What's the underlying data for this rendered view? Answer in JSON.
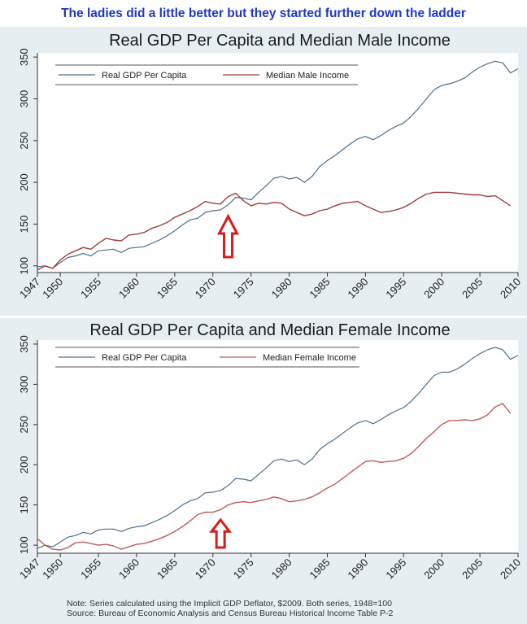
{
  "headline": "The ladies did a little better but they started further down the ladder",
  "note": {
    "line1": "Note: Series calculated using the Implicit GDP Deflator, $2009. Both series, 1948=100",
    "line2": "Source: Bureau of Economic Analysis and Census Bureau Historical Income Table P-2"
  },
  "colors": {
    "gdp_line": "#4a6f8c",
    "income_line": "#a03c3c",
    "income_line_female": "#c05a5a",
    "arrow": "#d81c1c",
    "panel_bg": "#e6eef2",
    "headline": "#1f38c4"
  },
  "chart_data": [
    {
      "type": "line",
      "title": "Real GDP Per Capita and Median Male Income",
      "xlabel": "",
      "ylabel": "",
      "x_ticks": [
        "1947",
        "1950",
        "1955",
        "1960",
        "1965",
        "1970",
        "1975",
        "1980",
        "1985",
        "1990",
        "1995",
        "2000",
        "2005",
        "2010"
      ],
      "y_ticks": [
        100,
        150,
        200,
        250,
        300,
        350
      ],
      "xlim": [
        1947,
        2010
      ],
      "ylim": [
        92,
        355
      ],
      "grid": false,
      "legend_placement": "top",
      "annotation": {
        "type": "arrow",
        "x": 1972,
        "description": "red-outline-up-arrow"
      },
      "series": [
        {
          "name": "Real GDP Per Capita",
          "x": [
            1947,
            1948,
            1949,
            1950,
            1951,
            1952,
            1953,
            1954,
            1955,
            1956,
            1957,
            1958,
            1959,
            1960,
            1961,
            1962,
            1963,
            1964,
            1965,
            1966,
            1967,
            1968,
            1969,
            1970,
            1971,
            1972,
            1973,
            1974,
            1975,
            1976,
            1977,
            1978,
            1979,
            1980,
            1981,
            1982,
            1983,
            1984,
            1985,
            1986,
            1987,
            1988,
            1989,
            1990,
            1991,
            1992,
            1993,
            1994,
            1995,
            1996,
            1997,
            1998,
            1999,
            2000,
            2001,
            2002,
            2003,
            2004,
            2005,
            2006,
            2007,
            2008,
            2009,
            2010
          ],
          "values": [
            99,
            100,
            97,
            104,
            110,
            112,
            115,
            112,
            118,
            119,
            120,
            116,
            121,
            122,
            123,
            127,
            131,
            136,
            142,
            149,
            155,
            157,
            164,
            166,
            167,
            173,
            182,
            181,
            179,
            188,
            196,
            205,
            207,
            204,
            206,
            200,
            207,
            219,
            226,
            232,
            239,
            246,
            252,
            255,
            251,
            256,
            262,
            267,
            271,
            279,
            289,
            300,
            311,
            316,
            318,
            321,
            325,
            332,
            338,
            342,
            345,
            343,
            331,
            336
          ]
        },
        {
          "name": "Median Male Income",
          "x": [
            1947,
            1948,
            1949,
            1950,
            1951,
            1952,
            1953,
            1954,
            1955,
            1956,
            1957,
            1958,
            1959,
            1960,
            1961,
            1962,
            1963,
            1964,
            1965,
            1966,
            1967,
            1968,
            1969,
            1970,
            1971,
            1972,
            1973,
            1974,
            1975,
            1976,
            1977,
            1978,
            1979,
            1980,
            1981,
            1982,
            1983,
            1984,
            1985,
            1986,
            1987,
            1988,
            1989,
            1990,
            1991,
            1992,
            1993,
            1994,
            1995,
            1996,
            1997,
            1998,
            1999,
            2000,
            2001,
            2002,
            2003,
            2004,
            2005,
            2006,
            2007,
            2008,
            2009
          ],
          "values": [
            95,
            100,
            97,
            107,
            114,
            118,
            122,
            120,
            127,
            133,
            131,
            130,
            137,
            138,
            140,
            145,
            148,
            152,
            158,
            162,
            166,
            171,
            177,
            175,
            174,
            183,
            187,
            178,
            172,
            175,
            174,
            176,
            175,
            168,
            164,
            160,
            162,
            166,
            168,
            172,
            175,
            176,
            177,
            172,
            168,
            164,
            165,
            167,
            170,
            175,
            181,
            186,
            188,
            188,
            188,
            187,
            186,
            185,
            185,
            183,
            184,
            178,
            172
          ]
        }
      ]
    },
    {
      "type": "line",
      "title": "Real GDP Per Capita and Median Female Income",
      "xlabel": "",
      "ylabel": "",
      "x_ticks": [
        "1947",
        "1950",
        "1955",
        "1960",
        "1965",
        "1970",
        "1975",
        "1980",
        "1985",
        "1990",
        "1995",
        "2000",
        "2005",
        "2010"
      ],
      "y_ticks": [
        100,
        150,
        200,
        250,
        300,
        350
      ],
      "xlim": [
        1947,
        2010
      ],
      "ylim": [
        90,
        355
      ],
      "grid": false,
      "legend_placement": "top",
      "annotation": {
        "type": "arrow",
        "x": 1971,
        "description": "red-outline-up-arrow"
      },
      "series": [
        {
          "name": "Real GDP Per Capita",
          "x": [
            1947,
            1948,
            1949,
            1950,
            1951,
            1952,
            1953,
            1954,
            1955,
            1956,
            1957,
            1958,
            1959,
            1960,
            1961,
            1962,
            1963,
            1964,
            1965,
            1966,
            1967,
            1968,
            1969,
            1970,
            1971,
            1972,
            1973,
            1974,
            1975,
            1976,
            1977,
            1978,
            1979,
            1980,
            1981,
            1982,
            1983,
            1984,
            1985,
            1986,
            1987,
            1988,
            1989,
            1990,
            1991,
            1992,
            1993,
            1994,
            1995,
            1996,
            1997,
            1998,
            1999,
            2000,
            2001,
            2002,
            2003,
            2004,
            2005,
            2006,
            2007,
            2008,
            2009,
            2010
          ],
          "values": [
            96,
            100,
            98,
            104,
            110,
            112,
            116,
            114,
            119,
            120,
            120,
            117,
            121,
            123,
            124,
            128,
            132,
            137,
            143,
            150,
            155,
            158,
            165,
            166,
            168,
            174,
            183,
            182,
            180,
            188,
            196,
            205,
            207,
            204,
            206,
            200,
            207,
            219,
            226,
            232,
            239,
            246,
            252,
            255,
            251,
            256,
            262,
            267,
            271,
            279,
            289,
            300,
            311,
            315,
            315,
            319,
            325,
            332,
            338,
            343,
            346,
            343,
            331,
            336
          ]
        },
        {
          "name": "Median Female Income",
          "x": [
            1947,
            1948,
            1949,
            1950,
            1951,
            1952,
            1953,
            1954,
            1955,
            1956,
            1957,
            1958,
            1959,
            1960,
            1961,
            1962,
            1963,
            1964,
            1965,
            1966,
            1967,
            1968,
            1969,
            1970,
            1971,
            1972,
            1973,
            1974,
            1975,
            1976,
            1977,
            1978,
            1979,
            1980,
            1981,
            1982,
            1983,
            1984,
            1985,
            1986,
            1987,
            1988,
            1989,
            1990,
            1991,
            1992,
            1993,
            1994,
            1995,
            1996,
            1997,
            1998,
            1999,
            2000,
            2001,
            2002,
            2003,
            2004,
            2005,
            2006,
            2007,
            2008,
            2009
          ],
          "values": [
            108,
            100,
            95,
            94,
            97,
            103,
            104,
            102,
            100,
            101,
            99,
            95,
            98,
            101,
            102,
            105,
            108,
            112,
            117,
            123,
            130,
            138,
            141,
            141,
            144,
            150,
            153,
            154,
            153,
            155,
            157,
            160,
            158,
            154,
            155,
            157,
            160,
            165,
            171,
            176,
            183,
            190,
            197,
            204,
            205,
            203,
            204,
            205,
            208,
            214,
            223,
            233,
            241,
            250,
            255,
            255,
            256,
            255,
            257,
            262,
            272,
            276,
            264
          ]
        }
      ]
    }
  ]
}
